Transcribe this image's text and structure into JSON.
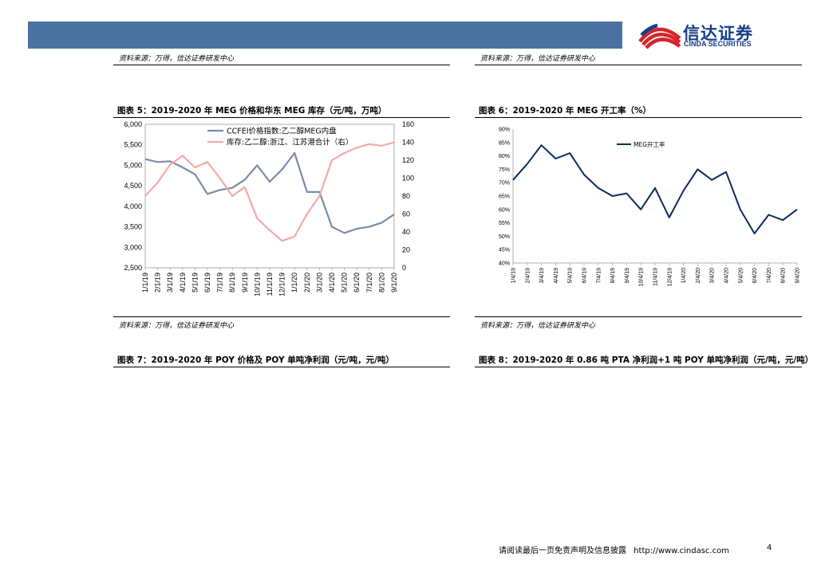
{
  "header": {
    "logo_cn": "信达证券",
    "logo_en": "CINDA SECURITIES"
  },
  "sources": {
    "top_left": "资料来源：万得，信达证券研发中心",
    "top_right": "资料来源：万得，信达证券研发中心",
    "mid_left": "资料来源：万得，信达证券研发中心",
    "mid_right": "资料来源：万得，信达证券研发中心"
  },
  "figures": {
    "fig5_title": "图表 5：2019-2020 年 MEG 价格和华东 MEG 库存（元/吨，万吨）",
    "fig6_title": "图表 6：2019-2020 年 MEG 开工率（%）",
    "fig7_title": "图表 7：2019-2020 年 POY 价格及 POY 单吨净利润（元/吨，元/吨）",
    "fig8_title": "图表 8：2019-2020 年 0.86 吨 PTA 净利润+1 吨 POY 单吨净利润（元/吨，元/吨）"
  },
  "footer": {
    "disclaimer": "请阅读最后一页免责声明及信息披露",
    "url": "http://www.cindasc.com",
    "page": "4"
  },
  "colors": {
    "header": "#4b72a0",
    "price_line": "#7a8aab",
    "inventory_line": "#f4a8a8",
    "rate_line": "#0b2a5c",
    "logo_red": "#d8232a",
    "logo_blue": "#163e8a"
  },
  "chart_data": [
    {
      "type": "line",
      "ylim": [
        2500,
        6000
      ],
      "y_ticks": [
        "6,000",
        "5,500",
        "5,000",
        "4,500",
        "4,000",
        "3,500",
        "3,000",
        "2,500"
      ],
      "y2lim": [
        0,
        160
      ],
      "y2_ticks": [
        "160",
        "140",
        "120",
        "100",
        "80",
        "60",
        "40",
        "20",
        "0"
      ],
      "categories": [
        "1/1/19",
        "2/1/19",
        "3/1/19",
        "4/1/19",
        "5/1/19",
        "6/1/19",
        "7/1/19",
        "8/1/19",
        "9/1/19",
        "10/1/19",
        "11/1/19",
        "12/1/19",
        "1/1/20",
        "2/1/20",
        "3/1/20",
        "4/1/20",
        "5/1/20",
        "6/1/20",
        "7/1/20",
        "8/1/20",
        "9/1/20"
      ],
      "legend_position": "top-left",
      "series": [
        {
          "name": "CCFEI价格指数:乙二醇MEG内盘",
          "axis": "left",
          "values": [
            5150,
            5080,
            5100,
            4950,
            4780,
            4300,
            4400,
            4450,
            4650,
            5000,
            4600,
            4900,
            5300,
            4350,
            4350,
            3500,
            3350,
            3450,
            3500,
            3600,
            3800
          ]
        },
        {
          "name": "库存:乙二醇:浙江、江苏港合计（右）",
          "axis": "right",
          "values": [
            80,
            95,
            115,
            125,
            112,
            118,
            100,
            80,
            90,
            55,
            42,
            30,
            35,
            60,
            80,
            120,
            128,
            134,
            138,
            136,
            140
          ]
        }
      ]
    },
    {
      "type": "line",
      "ylim": [
        40,
        90
      ],
      "y_ticks": [
        "90%",
        "85%",
        "80%",
        "75%",
        "70%",
        "65%",
        "60%",
        "55%",
        "50%",
        "45%",
        "40%"
      ],
      "categories": [
        "1/4/19",
        "2/4/19",
        "3/4/19",
        "4/4/19",
        "5/4/19",
        "6/4/19",
        "7/4/19",
        "8/4/19",
        "9/4/19",
        "10/4/19",
        "11/4/19",
        "12/4/19",
        "1/4/20",
        "2/4/20",
        "3/4/20",
        "4/4/20",
        "5/4/20",
        "6/4/20",
        "7/4/20",
        "8/4/20",
        "9/4/20"
      ],
      "legend_position": "top-right",
      "series": [
        {
          "name": "MEG开工率",
          "values": [
            71,
            77,
            84,
            79,
            81,
            73,
            68,
            65,
            66,
            60,
            68,
            57,
            67,
            75,
            71,
            74,
            60,
            51,
            58,
            56,
            60
          ]
        }
      ]
    }
  ]
}
